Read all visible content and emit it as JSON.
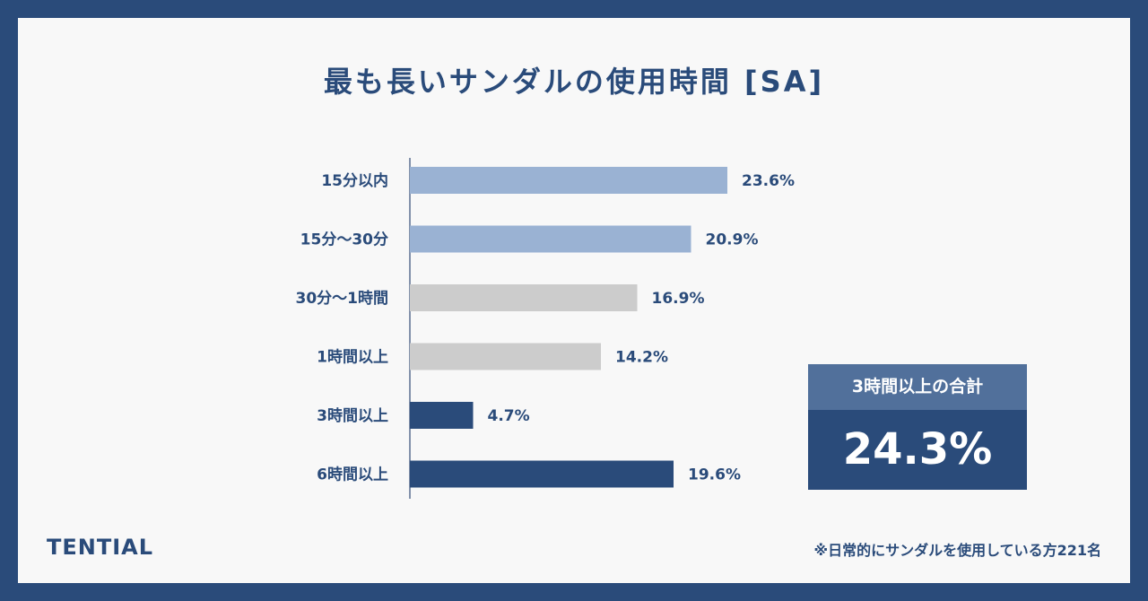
{
  "title": "最も長いサンダルの使用時間 [SA]",
  "chart_data": {
    "type": "bar",
    "orientation": "horizontal",
    "title": "最も長いサンダルの使用時間 [SA]",
    "categories": [
      "15分以内",
      "15分～30分",
      "30分～1時間",
      "1時間以上",
      "3時間以上",
      "6時間以上"
    ],
    "values": [
      23.6,
      20.9,
      16.9,
      14.2,
      4.7,
      19.6
    ],
    "value_labels": [
      "23.6%",
      "20.9%",
      "16.9%",
      "14.2%",
      "4.7%",
      "19.6%"
    ],
    "bar_colors": [
      "#9ab2d3",
      "#9ab2d3",
      "#cccccc",
      "#cccccc",
      "#2a4b7a",
      "#2a4b7a"
    ],
    "unit": "%",
    "xlim": [
      0,
      23.6
    ],
    "grid": false,
    "legend": "none"
  },
  "summary": {
    "label": "3時間以上の合計",
    "value": "24.3%"
  },
  "brand": "TENTIAL",
  "note": "※日常的にサンダルを使用している方221名",
  "colors": {
    "frame": "#2a4b7a",
    "background": "#f8f8f8",
    "text": "#2a4b7a",
    "summary_header": "#51709b"
  }
}
